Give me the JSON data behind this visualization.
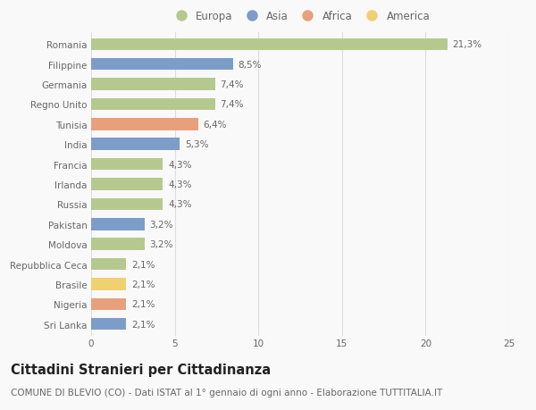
{
  "countries": [
    "Romania",
    "Filippine",
    "Germania",
    "Regno Unito",
    "Tunisia",
    "India",
    "Francia",
    "Irlanda",
    "Russia",
    "Pakistan",
    "Moldova",
    "Repubblica Ceca",
    "Brasile",
    "Nigeria",
    "Sri Lanka"
  ],
  "values": [
    21.3,
    8.5,
    7.4,
    7.4,
    6.4,
    5.3,
    4.3,
    4.3,
    4.3,
    3.2,
    3.2,
    2.1,
    2.1,
    2.1,
    2.1
  ],
  "labels": [
    "21,3%",
    "8,5%",
    "7,4%",
    "7,4%",
    "6,4%",
    "5,3%",
    "4,3%",
    "4,3%",
    "4,3%",
    "3,2%",
    "3,2%",
    "2,1%",
    "2,1%",
    "2,1%",
    "2,1%"
  ],
  "continents": [
    "Europa",
    "Asia",
    "Europa",
    "Europa",
    "Africa",
    "Asia",
    "Europa",
    "Europa",
    "Europa",
    "Asia",
    "Europa",
    "Europa",
    "America",
    "Africa",
    "Asia"
  ],
  "continent_colors": {
    "Europa": "#b5c98e",
    "Asia": "#7b9dc8",
    "Africa": "#e8a07c",
    "America": "#f0d070"
  },
  "legend_order": [
    "Europa",
    "Asia",
    "Africa",
    "America"
  ],
  "title": "Cittadini Stranieri per Cittadinanza",
  "subtitle": "COMUNE DI BLEVIO (CO) - Dati ISTAT al 1° gennaio di ogni anno - Elaborazione TUTTITALIA.IT",
  "xlim": [
    0,
    25
  ],
  "xticks": [
    0,
    5,
    10,
    15,
    20,
    25
  ],
  "bg_color": "#f9f9f9",
  "bar_height": 0.6,
  "grid_color": "#dddddd",
  "label_fontsize": 7.5,
  "tick_fontsize": 7.5,
  "title_fontsize": 10.5,
  "subtitle_fontsize": 7.5,
  "legend_fontsize": 8.5
}
